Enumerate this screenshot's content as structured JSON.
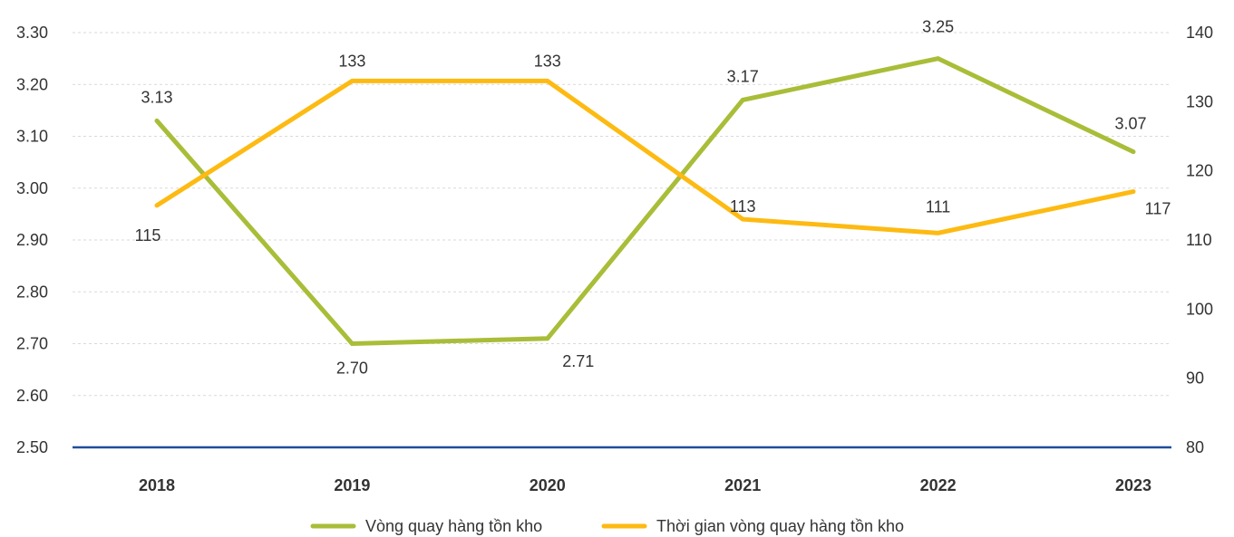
{
  "chart_data": {
    "type": "line",
    "categories": [
      "2018",
      "2019",
      "2020",
      "2021",
      "2022",
      "2023"
    ],
    "series": [
      {
        "name": "Vòng quay hàng tồn kho",
        "axis": "left",
        "color": "#A9BD38",
        "values": [
          3.13,
          2.7,
          2.71,
          3.17,
          3.25,
          3.07
        ],
        "labels": [
          "3.13",
          "2.70",
          "2.71",
          "3.17",
          "3.25",
          "3.07"
        ]
      },
      {
        "name": "Thời gian vòng quay hàng tồn kho",
        "axis": "right",
        "color": "#FDBA12",
        "values": [
          115,
          133,
          133,
          113,
          111,
          117
        ],
        "labels": [
          "115",
          "133",
          "133",
          "113",
          "111",
          "117"
        ]
      }
    ],
    "y_left": {
      "ylim": [
        2.5,
        3.3
      ],
      "ticks": [
        2.5,
        2.6,
        2.7,
        2.8,
        2.9,
        3.0,
        3.1,
        3.2,
        3.3
      ],
      "tick_labels": [
        "2.50",
        "2.60",
        "2.70",
        "2.80",
        "2.90",
        "3.00",
        "3.10",
        "3.20",
        "3.30"
      ]
    },
    "y_right": {
      "ylim": [
        80,
        140
      ],
      "ticks": [
        80,
        90,
        100,
        110,
        120,
        130,
        140
      ],
      "tick_labels": [
        "80",
        "90",
        "100",
        "110",
        "120",
        "130",
        "140"
      ]
    },
    "grid": true,
    "legend_position": "bottom-center",
    "baseline_color": "#1F4E9A",
    "grid_color": "#D9D9D9"
  }
}
